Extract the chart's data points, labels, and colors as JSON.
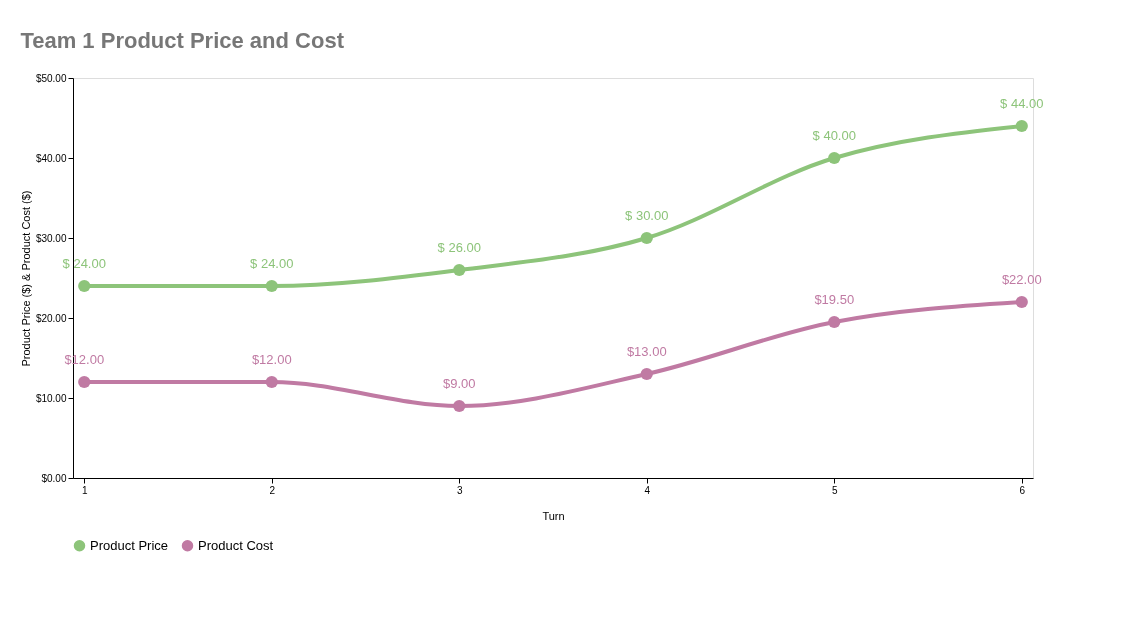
{
  "chart_data": {
    "type": "line",
    "title": "Team 1 Product Price and Cost",
    "xlabel": "Turn",
    "ylabel": "Product Price ($) & Product Cost ($)",
    "x": [
      1,
      2,
      3,
      4,
      5,
      6
    ],
    "xlim": [
      0.94,
      6.06
    ],
    "xticks": [
      1,
      2,
      3,
      4,
      5,
      6
    ],
    "ylim": [
      0,
      50
    ],
    "yticks": [
      {
        "value": 0,
        "label": "$0.00"
      },
      {
        "value": 10,
        "label": "$10.00"
      },
      {
        "value": 20,
        "label": "$20.00"
      },
      {
        "value": 30,
        "label": "$30.00"
      },
      {
        "value": 40,
        "label": "$40.00"
      },
      {
        "value": 50,
        "label": "$50.00"
      }
    ],
    "series": [
      {
        "name": "Product Price",
        "color": "#8dc47a",
        "values": [
          24,
          24,
          26,
          30,
          40,
          44
        ],
        "value_labels": [
          "$ 24.00",
          "$ 24.00",
          "$ 26.00",
          "$ 30.00",
          "$ 40.00",
          "$ 44.00"
        ]
      },
      {
        "name": "Product Cost",
        "color": "#c07aa3",
        "values": [
          12,
          12,
          9,
          13,
          19.5,
          22
        ],
        "value_labels": [
          "$12.00",
          "$12.00",
          "$9.00",
          "$13.00",
          "$19.50",
          "$22.00"
        ]
      }
    ],
    "marker": "circle",
    "line_style": "solid",
    "grid": false,
    "legend": "bottom"
  }
}
